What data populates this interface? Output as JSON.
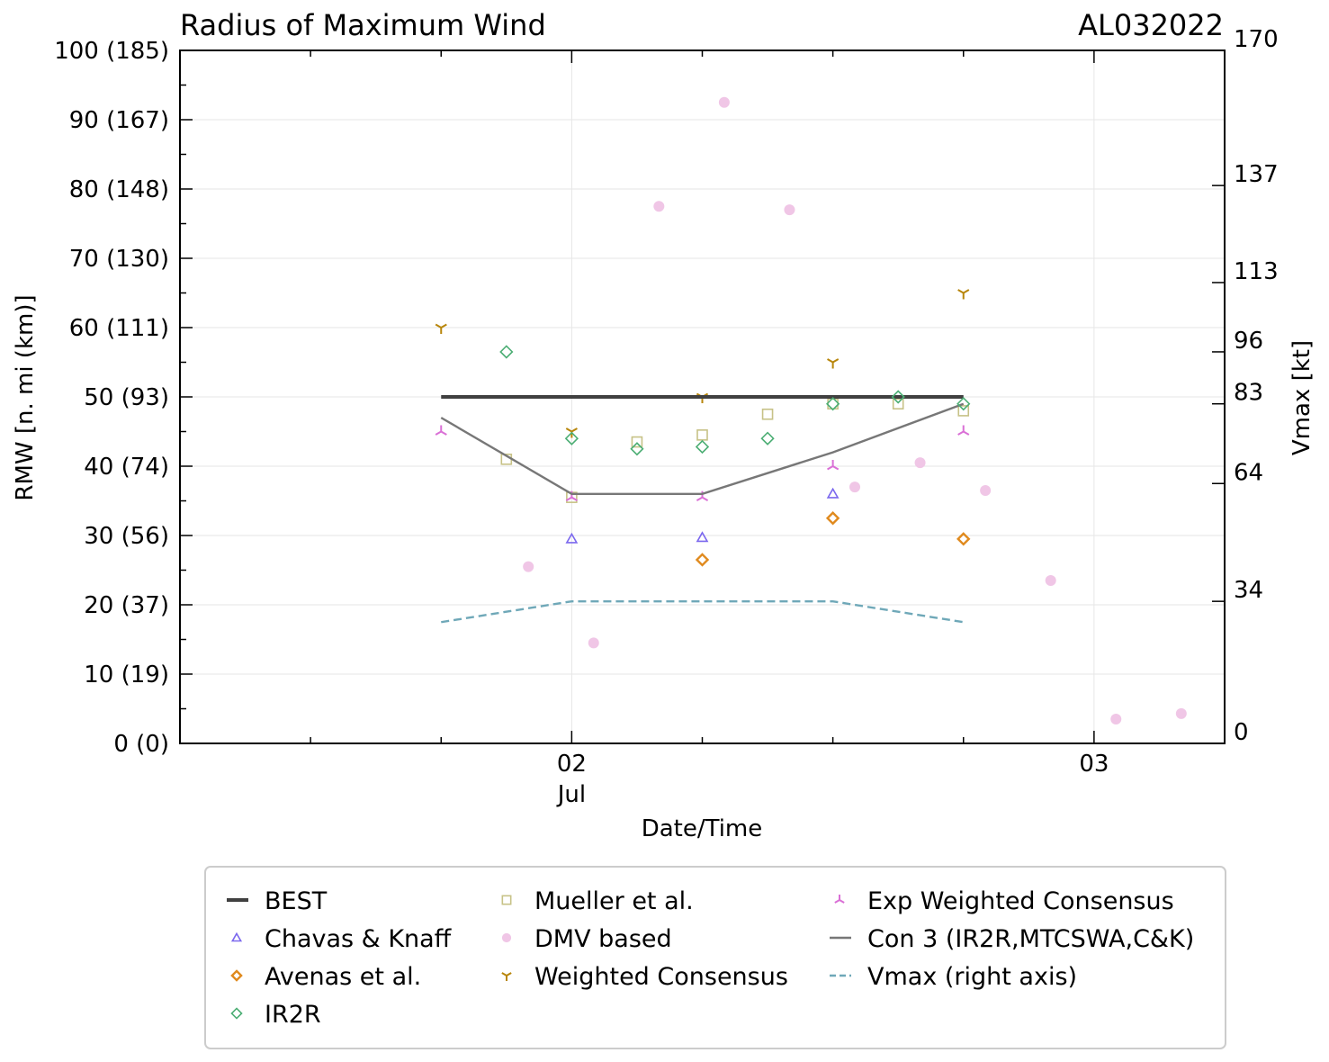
{
  "chart_data": {
    "type": "scatter",
    "title": "Radius of Maximum Wind",
    "storm_id": "AL032022",
    "xlabel": "Date/Time",
    "ylabel": "RMW [n. mi (km)]",
    "y2label": "Vmax [kt]",
    "ylim": [
      0,
      100
    ],
    "xlim": [
      1.25,
      3.25
    ],
    "x_units": "day of July 2022",
    "grid": true,
    "x_ticks": [
      {
        "x": 2.0,
        "label": "02",
        "sublabel": "Jul"
      },
      {
        "x": 3.0,
        "label": "03",
        "sublabel": ""
      }
    ],
    "x_minor_ticks": [
      1.5,
      1.75,
      2.25,
      2.5,
      2.75
    ],
    "y_ticks": [
      {
        "v": 0,
        "label": "0 (0)"
      },
      {
        "v": 10,
        "label": "10 (19)"
      },
      {
        "v": 20,
        "label": "20 (37)"
      },
      {
        "v": 30,
        "label": "30 (56)"
      },
      {
        "v": 40,
        "label": "40 (74)"
      },
      {
        "v": 50,
        "label": "50 (93)"
      },
      {
        "v": 60,
        "label": "60 (111)"
      },
      {
        "v": 70,
        "label": "70 (130)"
      },
      {
        "v": 80,
        "label": "80 (148)"
      },
      {
        "v": 90,
        "label": "90 (167)"
      },
      {
        "v": 100,
        "label": "100 (185)"
      }
    ],
    "y2_ticks": [
      {
        "kt": 0,
        "label": "0"
      },
      {
        "kt": 34,
        "label": "34"
      },
      {
        "kt": 64,
        "label": "64"
      },
      {
        "kt": 83,
        "label": "83"
      },
      {
        "kt": 96,
        "label": "96"
      },
      {
        "kt": 113,
        "label": "113"
      },
      {
        "kt": 137,
        "label": "137"
      },
      {
        "kt": 170,
        "label": "170"
      }
    ],
    "y2_ticks_rmw_scale": [
      0,
      20.5,
      37.5,
      49.0,
      56.5,
      66.5,
      80.5,
      100
    ],
    "series": [
      {
        "name": "BEST",
        "kind": "line",
        "color": "#404040",
        "x": [
          1.75,
          2.75
        ],
        "y": [
          50,
          50
        ]
      },
      {
        "name": "Chavas & Knaff",
        "kind": "marker",
        "marker": "triangle",
        "color": "#7b68ee",
        "x": [
          2.0,
          2.25,
          2.5
        ],
        "y": [
          29.5,
          29.7,
          36
        ]
      },
      {
        "name": "Avenas et al.",
        "kind": "marker",
        "marker": "diamond",
        "color": "#e08a1e",
        "x": [
          2.25,
          2.5,
          2.75
        ],
        "y": [
          26.5,
          32.5,
          29.5
        ]
      },
      {
        "name": "IR2R",
        "kind": "marker",
        "marker": "diamond-open",
        "color": "#4cae74",
        "x": [
          1.875,
          2.0,
          2.125,
          2.25,
          2.375,
          2.5,
          2.625,
          2.75
        ],
        "y": [
          56.5,
          44,
          42.5,
          42.8,
          44,
          49,
          50,
          49
        ]
      },
      {
        "name": "Mueller et al.",
        "kind": "marker",
        "marker": "square",
        "color": "#c7c287",
        "x": [
          1.875,
          2.0,
          2.125,
          2.25,
          2.375,
          2.5,
          2.625,
          2.75
        ],
        "y": [
          41,
          35.5,
          43.5,
          44.5,
          47.5,
          49,
          49,
          48
        ]
      },
      {
        "name": "DMV based",
        "kind": "marker",
        "marker": "circle",
        "color": "#f0c6e6",
        "x": [
          1.917,
          2.042,
          2.167,
          2.292,
          2.417,
          2.542,
          2.667,
          2.792,
          2.917,
          3.042,
          3.167
        ],
        "y": [
          25.5,
          14.5,
          77.5,
          92.5,
          77,
          37,
          40.5,
          36.5,
          23.5,
          3.5,
          4.3
        ]
      },
      {
        "name": "Weighted Consensus",
        "kind": "marker",
        "marker": "tri-down",
        "color": "#b8860b",
        "x": [
          1.75,
          2.0,
          2.25,
          2.5,
          2.75
        ],
        "y": [
          60,
          45,
          50,
          55,
          65
        ]
      },
      {
        "name": "Exp Weighted Consensus",
        "kind": "marker",
        "marker": "tri-up",
        "color": "#da70d6",
        "x": [
          1.75,
          2.0,
          2.25,
          2.5,
          2.75
        ],
        "y": [
          45,
          35.5,
          35.5,
          40,
          45
        ]
      },
      {
        "name": "Con 3 (IR2R,MTCSWA,C&K)",
        "kind": "line",
        "color": "#777777",
        "x": [
          1.75,
          2.0,
          2.25,
          2.5,
          2.75
        ],
        "y": [
          47,
          36,
          36,
          42,
          49
        ]
      },
      {
        "name": "Vmax (right axis)",
        "kind": "dashed-line",
        "color": "#6fa8b8",
        "axis": "right",
        "x": [
          1.75,
          2.0,
          2.5,
          2.75
        ],
        "vmax_kt": [
          30,
          35,
          35,
          30
        ],
        "y_plotted_rmw_scale": [
          17.5,
          20.5,
          20.5,
          17.5
        ]
      }
    ],
    "legend": {
      "placement": "below",
      "columns": [
        [
          "BEST",
          "Chavas & Knaff",
          "Avenas et al.",
          "IR2R"
        ],
        [
          "Mueller et al.",
          "DMV based",
          "Weighted Consensus"
        ],
        [
          "Exp Weighted Consensus",
          "Con 3 (IR2R,MTCSWA,C&K)",
          "Vmax (right axis)"
        ]
      ]
    }
  }
}
